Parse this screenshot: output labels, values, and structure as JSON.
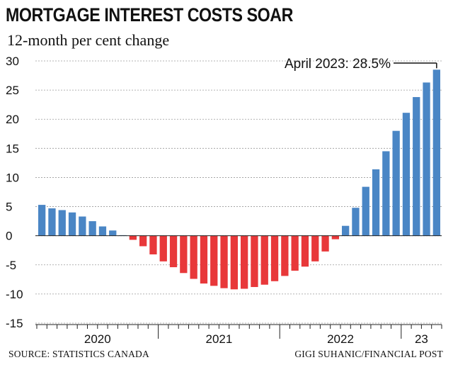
{
  "title": "MORTGAGE INTEREST COSTS SOAR",
  "subtitle": "12-month per cent change",
  "source": "SOURCE: STATISTICS CANADA",
  "credit": "GIGI SUHANIC/FINANCIAL POST",
  "colors": {
    "positive": "#4a86c5",
    "negative": "#e8383a"
  },
  "chart_data": {
    "type": "bar",
    "title": "MORTGAGE INTEREST COSTS SOAR",
    "subtitle": "12-month per cent change",
    "ylim": [
      -15,
      30
    ],
    "yticks": [
      "30",
      "25",
      "20",
      "15",
      "10",
      "5",
      "0",
      "-5",
      "-10",
      "-15"
    ],
    "year_labels": [
      "2020",
      "2021",
      "2022",
      "23"
    ],
    "categories": [
      "Jan 2020",
      "Feb 2020",
      "Mar 2020",
      "Apr 2020",
      "May 2020",
      "Jun 2020",
      "Jul 2020",
      "Aug 2020",
      "Sep 2020",
      "Oct 2020",
      "Nov 2020",
      "Dec 2020",
      "Jan 2021",
      "Feb 2021",
      "Mar 2021",
      "Apr 2021",
      "May 2021",
      "Jun 2021",
      "Jul 2021",
      "Aug 2021",
      "Sep 2021",
      "Oct 2021",
      "Nov 2021",
      "Dec 2021",
      "Jan 2022",
      "Feb 2022",
      "Mar 2022",
      "Apr 2022",
      "May 2022",
      "Jun 2022",
      "Jul 2022",
      "Aug 2022",
      "Sep 2022",
      "Oct 2022",
      "Nov 2022",
      "Dec 2022",
      "Jan 2023",
      "Feb 2023",
      "Mar 2023",
      "Apr 2023"
    ],
    "values": [
      5.3,
      4.7,
      4.4,
      4.0,
      3.3,
      2.5,
      1.6,
      0.9,
      0.1,
      -0.7,
      -1.8,
      -3.2,
      -4.4,
      -5.4,
      -6.4,
      -7.4,
      -8.2,
      -8.6,
      -9.0,
      -9.2,
      -9.1,
      -8.8,
      -8.4,
      -7.8,
      -6.9,
      -6.0,
      -5.3,
      -4.4,
      -2.7,
      -0.6,
      1.7,
      4.8,
      8.4,
      11.4,
      14.5,
      18.0,
      21.1,
      23.8,
      26.3,
      28.5
    ],
    "annotation": "April 2023: 28.5%",
    "grid": true
  }
}
